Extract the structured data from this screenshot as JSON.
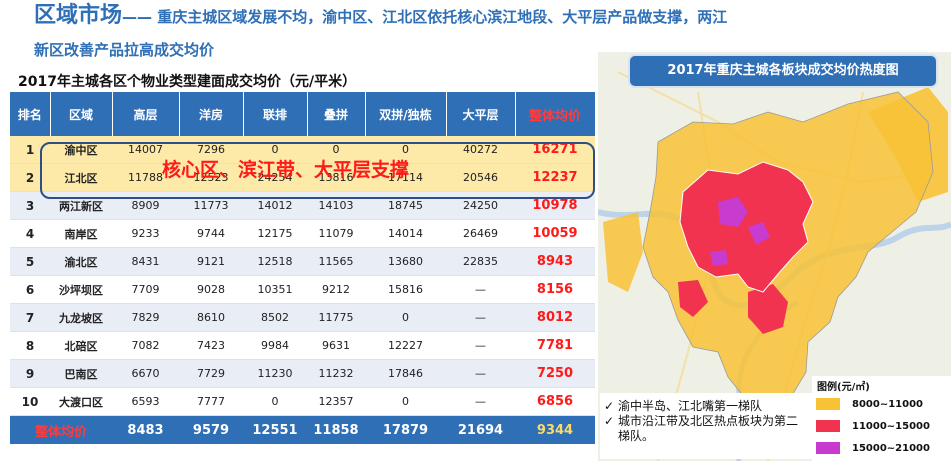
{
  "headline": {
    "title": "区域市场",
    "dash": "——",
    "line1_rest": " 重庆主城区域发展不均，渝中区、江北区依托核心滨江地段、大平层产品做支撑，两江",
    "line2": "新区改善产品拉高成交均价"
  },
  "table": {
    "title": "2017年主城各区个物业类型建面成交均价（元/平米）",
    "headers": [
      "排名",
      "区域",
      "高层",
      "洋房",
      "联排",
      "叠拼",
      "双拼/独栋",
      "大平层",
      "整体均价"
    ],
    "rows": [
      [
        "1",
        "渝中区",
        "14007",
        "7296",
        "0",
        "0",
        "0",
        "40272",
        "16271"
      ],
      [
        "2",
        "江北区",
        "11788",
        "12523",
        "24254",
        "13816",
        "17114",
        "20546",
        "12237"
      ],
      [
        "3",
        "两江新区",
        "8909",
        "11773",
        "14012",
        "14103",
        "18745",
        "24250",
        "10978"
      ],
      [
        "4",
        "南岸区",
        "9233",
        "9744",
        "12175",
        "11079",
        "14014",
        "26469",
        "10059"
      ],
      [
        "5",
        "渝北区",
        "8431",
        "9121",
        "12518",
        "11565",
        "13680",
        "22835",
        "8943"
      ],
      [
        "6",
        "沙坪坝区",
        "7709",
        "9028",
        "10351",
        "9212",
        "15816",
        "—",
        "8156"
      ],
      [
        "7",
        "九龙坡区",
        "7829",
        "8610",
        "8502",
        "11775",
        "0",
        "—",
        "8012"
      ],
      [
        "8",
        "北碚区",
        "7082",
        "7423",
        "9984",
        "9631",
        "12227",
        "—",
        "7781"
      ],
      [
        "9",
        "巴南区",
        "6670",
        "7729",
        "11230",
        "11232",
        "17846",
        "—",
        "7250"
      ],
      [
        "10",
        "大渡口区",
        "6593",
        "7777",
        "0",
        "12357",
        "0",
        "—",
        "6856"
      ]
    ],
    "footer": [
      "整体均价",
      "8483",
      "9579",
      "12551",
      "11858",
      "17879",
      "21694",
      "9344"
    ]
  },
  "callout": "核心区、滨江带、大平层支撑",
  "map": {
    "title": "2017年重庆主城各板块成交均价热度图"
  },
  "notes": {
    "check": "✓",
    "items": [
      "渝中半岛、江北嘴第一梯队",
      "城市沿江带及北区热点板块为第二梯队。"
    ]
  },
  "legend": {
    "title": "图例(元/㎡)",
    "items": [
      {
        "label": "8000~11000",
        "color": "#f8c236"
      },
      {
        "label": "11000~15000",
        "color": "#f2334f"
      },
      {
        "label": "15000~21000",
        "color": "#c73ccf"
      }
    ]
  },
  "colors": {
    "brand_blue": "#2f6fb6",
    "highlight_red": "#ff1a1a",
    "core_row": "#fde9a8",
    "map_yellow": "#f8c236",
    "map_red": "#f2334f",
    "map_purple": "#c73ccf"
  }
}
